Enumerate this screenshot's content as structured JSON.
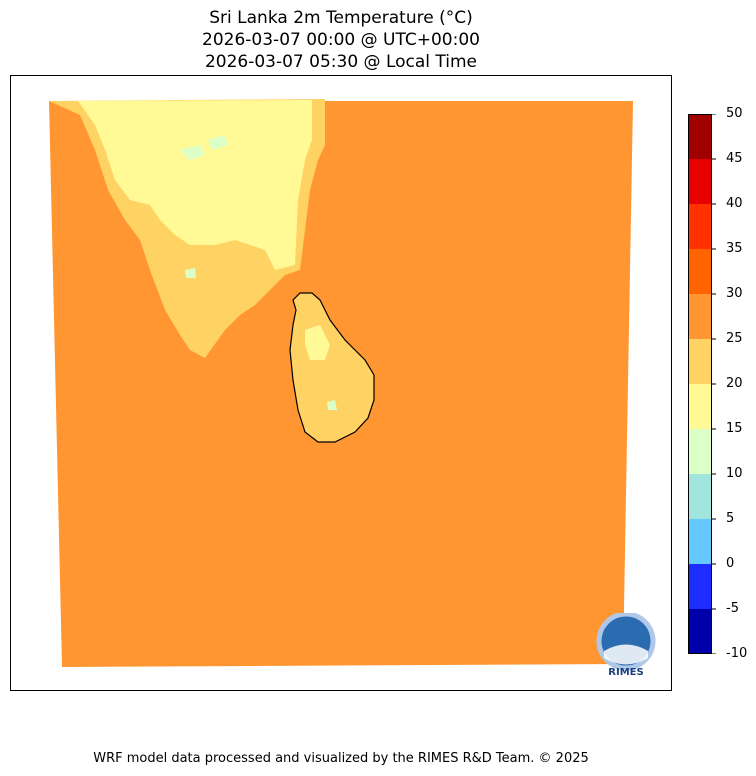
{
  "title": {
    "line1": "Sri Lanka 2m Temperature (°C)",
    "line2": "2026-03-07 00:00 @ UTC+00:00",
    "line3": "2026-03-07 05:30 @ Local Time"
  },
  "colorbar": {
    "levels": [
      -10,
      -5,
      0,
      5,
      10,
      15,
      20,
      25,
      30,
      35,
      40,
      45,
      50
    ],
    "tick_labels": [
      "-10",
      "-5",
      "0",
      "5",
      "10",
      "15",
      "20",
      "25",
      "30",
      "35",
      "40",
      "45",
      "50"
    ],
    "colors": [
      "#0000aa",
      "#1e2dff",
      "#64c8ff",
      "#a0e6dc",
      "#dcffc8",
      "#fffa96",
      "#ffd264",
      "#ff9632",
      "#ff6400",
      "#ff3200",
      "#e60000",
      "#a00000"
    ]
  },
  "map": {
    "background_color": "#ff9632",
    "land_warm_color": "#ffd264",
    "land_mild_color": "#fffa96",
    "land_cool_color": "#dcffc8"
  },
  "logo": {
    "text": "RIMES"
  },
  "footer": "WRF model data processed and visualized by the RIMES R&D Team. © 2025"
}
